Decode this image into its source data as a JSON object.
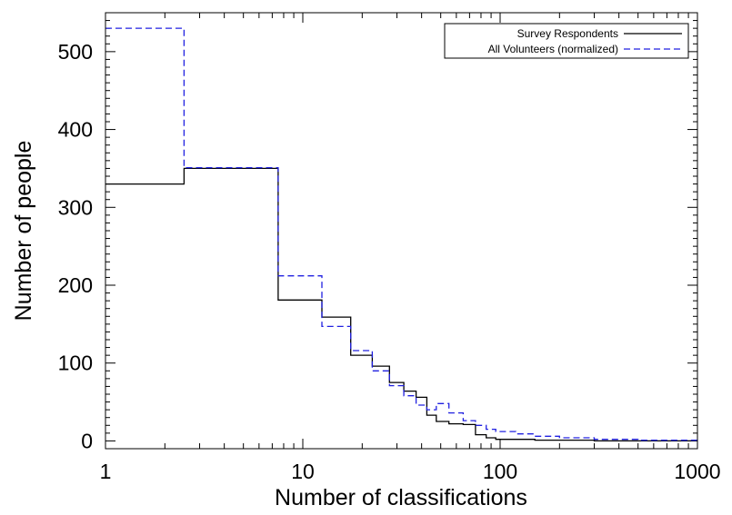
{
  "chart_data": {
    "type": "line",
    "xlabel": "Number of classifications",
    "ylabel": "Number of people",
    "xscale": "log",
    "xlim": [
      1,
      1000
    ],
    "ylim": [
      -10,
      550
    ],
    "x_ticks": [
      {
        "value": 1,
        "label": "1"
      },
      {
        "value": 10,
        "label": "10"
      },
      {
        "value": 100,
        "label": "100"
      },
      {
        "value": 1000,
        "label": "1000"
      }
    ],
    "y_ticks": [
      {
        "value": 0,
        "label": "0"
      },
      {
        "value": 100,
        "label": "100"
      },
      {
        "value": 200,
        "label": "200"
      },
      {
        "value": 300,
        "label": "300"
      },
      {
        "value": 400,
        "label": "400"
      },
      {
        "value": 500,
        "label": "500"
      }
    ],
    "legend_position": "top-right",
    "series": [
      {
        "name": "Survey Respondents",
        "color": "#000000",
        "dash": "solid",
        "steps": [
          [
            1,
            330
          ],
          [
            2.5,
            350
          ],
          [
            7.5,
            181
          ],
          [
            12.5,
            159
          ],
          [
            17.5,
            110
          ],
          [
            22.5,
            96
          ],
          [
            27.5,
            75
          ],
          [
            32.5,
            64
          ],
          [
            37.5,
            56
          ],
          [
            42.5,
            33
          ],
          [
            47.5,
            25
          ],
          [
            55,
            22
          ],
          [
            65,
            21
          ],
          [
            75,
            8
          ],
          [
            85,
            4
          ],
          [
            95,
            2
          ],
          [
            150,
            1
          ],
          [
            300,
            0
          ]
        ],
        "end_x": 1000
      },
      {
        "name": "All Volunteers (normalized)",
        "color": "#2020e0",
        "dash": "dashed",
        "steps": [
          [
            1,
            530
          ],
          [
            2.5,
            351
          ],
          [
            7.5,
            212
          ],
          [
            12.5,
            147
          ],
          [
            17.5,
            116
          ],
          [
            22.5,
            90
          ],
          [
            27.5,
            71
          ],
          [
            32.5,
            58
          ],
          [
            37.5,
            46
          ],
          [
            42.5,
            40
          ],
          [
            47.5,
            48
          ],
          [
            55,
            36
          ],
          [
            65,
            26
          ],
          [
            75,
            20
          ],
          [
            85,
            15
          ],
          [
            95,
            12
          ],
          [
            120,
            9
          ],
          [
            150,
            6
          ],
          [
            200,
            4
          ],
          [
            300,
            2
          ],
          [
            500,
            1
          ]
        ],
        "end_x": 1000
      }
    ]
  }
}
